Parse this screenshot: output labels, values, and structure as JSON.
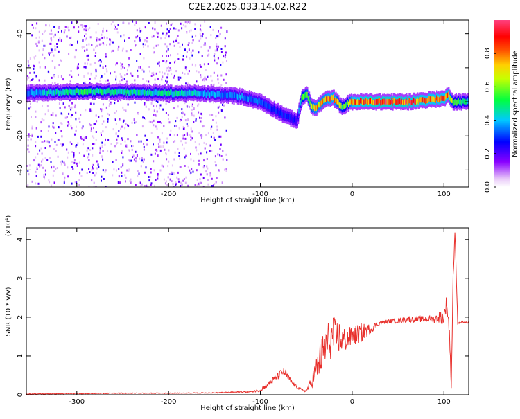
{
  "page": {
    "title": "C2E2.2025.033.14.02.R22"
  },
  "chart_data": [
    {
      "type": "heatmap",
      "title": "C2E2.2025.033.14.02.R22",
      "xlabel": "Height of straight line (km)",
      "ylabel": "Frequency (Hz)",
      "xlim": [
        -355,
        127
      ],
      "ylim": [
        -50,
        48
      ],
      "xticks": [
        -300,
        -200,
        -100,
        0,
        100
      ],
      "yticks": [
        -40,
        -20,
        0,
        20,
        40
      ],
      "colorbar": {
        "label": "Normalized spectral amplitude",
        "ticks": [
          "0.0",
          "0.2",
          "0.4",
          "0.6",
          "0.8"
        ],
        "colormap": "rainbow (white-purple-blue-cyan-green-yellow-red-magenta)"
      },
      "ridge": {
        "x": [
          -355,
          -300,
          -250,
          -200,
          -170,
          -140,
          -120,
          -100,
          -90,
          -80,
          -70,
          -60,
          -55,
          -50,
          -45,
          -40,
          -35,
          -30,
          -25,
          -20,
          -15,
          -10,
          -5,
          0,
          20,
          40,
          60,
          80,
          100,
          105,
          110,
          127
        ],
        "y": [
          5,
          6,
          6,
          5,
          5,
          4,
          3,
          0,
          -3,
          -6,
          -9,
          -11,
          2,
          5,
          -2,
          -4,
          -1,
          1,
          2,
          2,
          -1,
          -3,
          -1,
          0,
          0,
          0,
          0,
          1,
          2,
          4,
          0,
          0
        ],
        "amplitude": [
          0.4,
          0.55,
          0.5,
          0.5,
          0.45,
          0.4,
          0.4,
          0.35,
          0.3,
          0.3,
          0.3,
          0.25,
          0.6,
          0.7,
          0.7,
          0.8,
          0.8,
          0.8,
          0.85,
          0.85,
          0.7,
          0.6,
          0.6,
          0.9,
          0.95,
          0.95,
          0.95,
          0.9,
          0.9,
          0.85,
          0.6,
          0.5
        ]
      },
      "noise_region_x": [
        -355,
        -137
      ]
    },
    {
      "type": "line",
      "xlabel": "Height of straight line (km)",
      "ylabel": "SNR (10 * v/v)",
      "y_multiplier": "(x10⁴)",
      "xlim": [
        -355,
        127
      ],
      "ylim": [
        0,
        4.3
      ],
      "xticks": [
        -300,
        -200,
        -100,
        0,
        100
      ],
      "yticks": [
        0,
        1,
        2,
        3,
        4
      ],
      "line_color": "#e8302c",
      "series": [
        {
          "x": [
            -355,
            -300,
            -250,
            -200,
            -150,
            -110,
            -100,
            -90,
            -80,
            -75,
            -70,
            -65,
            -60,
            -55,
            -50,
            -45,
            -40,
            -35,
            -30,
            -25,
            -20,
            -15,
            -10,
            0,
            10,
            20,
            30,
            40,
            50,
            60,
            70,
            80,
            90,
            95,
            100,
            103,
            106,
            108,
            110,
            112,
            115,
            120,
            127
          ],
          "y": [
            0.02,
            0.03,
            0.04,
            0.04,
            0.05,
            0.08,
            0.12,
            0.3,
            0.5,
            0.6,
            0.45,
            0.3,
            0.2,
            0.12,
            0.1,
            0.3,
            0.6,
            0.9,
            1.2,
            1.4,
            1.5,
            1.5,
            1.4,
            1.5,
            1.6,
            1.7,
            1.85,
            1.9,
            1.9,
            1.95,
            1.95,
            1.95,
            1.95,
            2.0,
            2.0,
            2.4,
            1.6,
            0.2,
            3.0,
            4.2,
            1.85,
            1.88,
            1.85
          ],
          "jitter": [
            0.01,
            0.01,
            0.01,
            0.01,
            0.01,
            0.02,
            0.04,
            0.08,
            0.1,
            0.12,
            0.1,
            0.05,
            0.04,
            0.03,
            0.03,
            0.15,
            0.3,
            0.45,
            0.55,
            0.55,
            0.5,
            0.45,
            0.35,
            0.25,
            0.25,
            0.12,
            0.06,
            0.05,
            0.06,
            0.08,
            0.08,
            0.08,
            0.1,
            0.15,
            0.2,
            0.2,
            0.2,
            0.05,
            0.2,
            0.05,
            0.03,
            0.02,
            0.02
          ]
        }
      ]
    }
  ]
}
